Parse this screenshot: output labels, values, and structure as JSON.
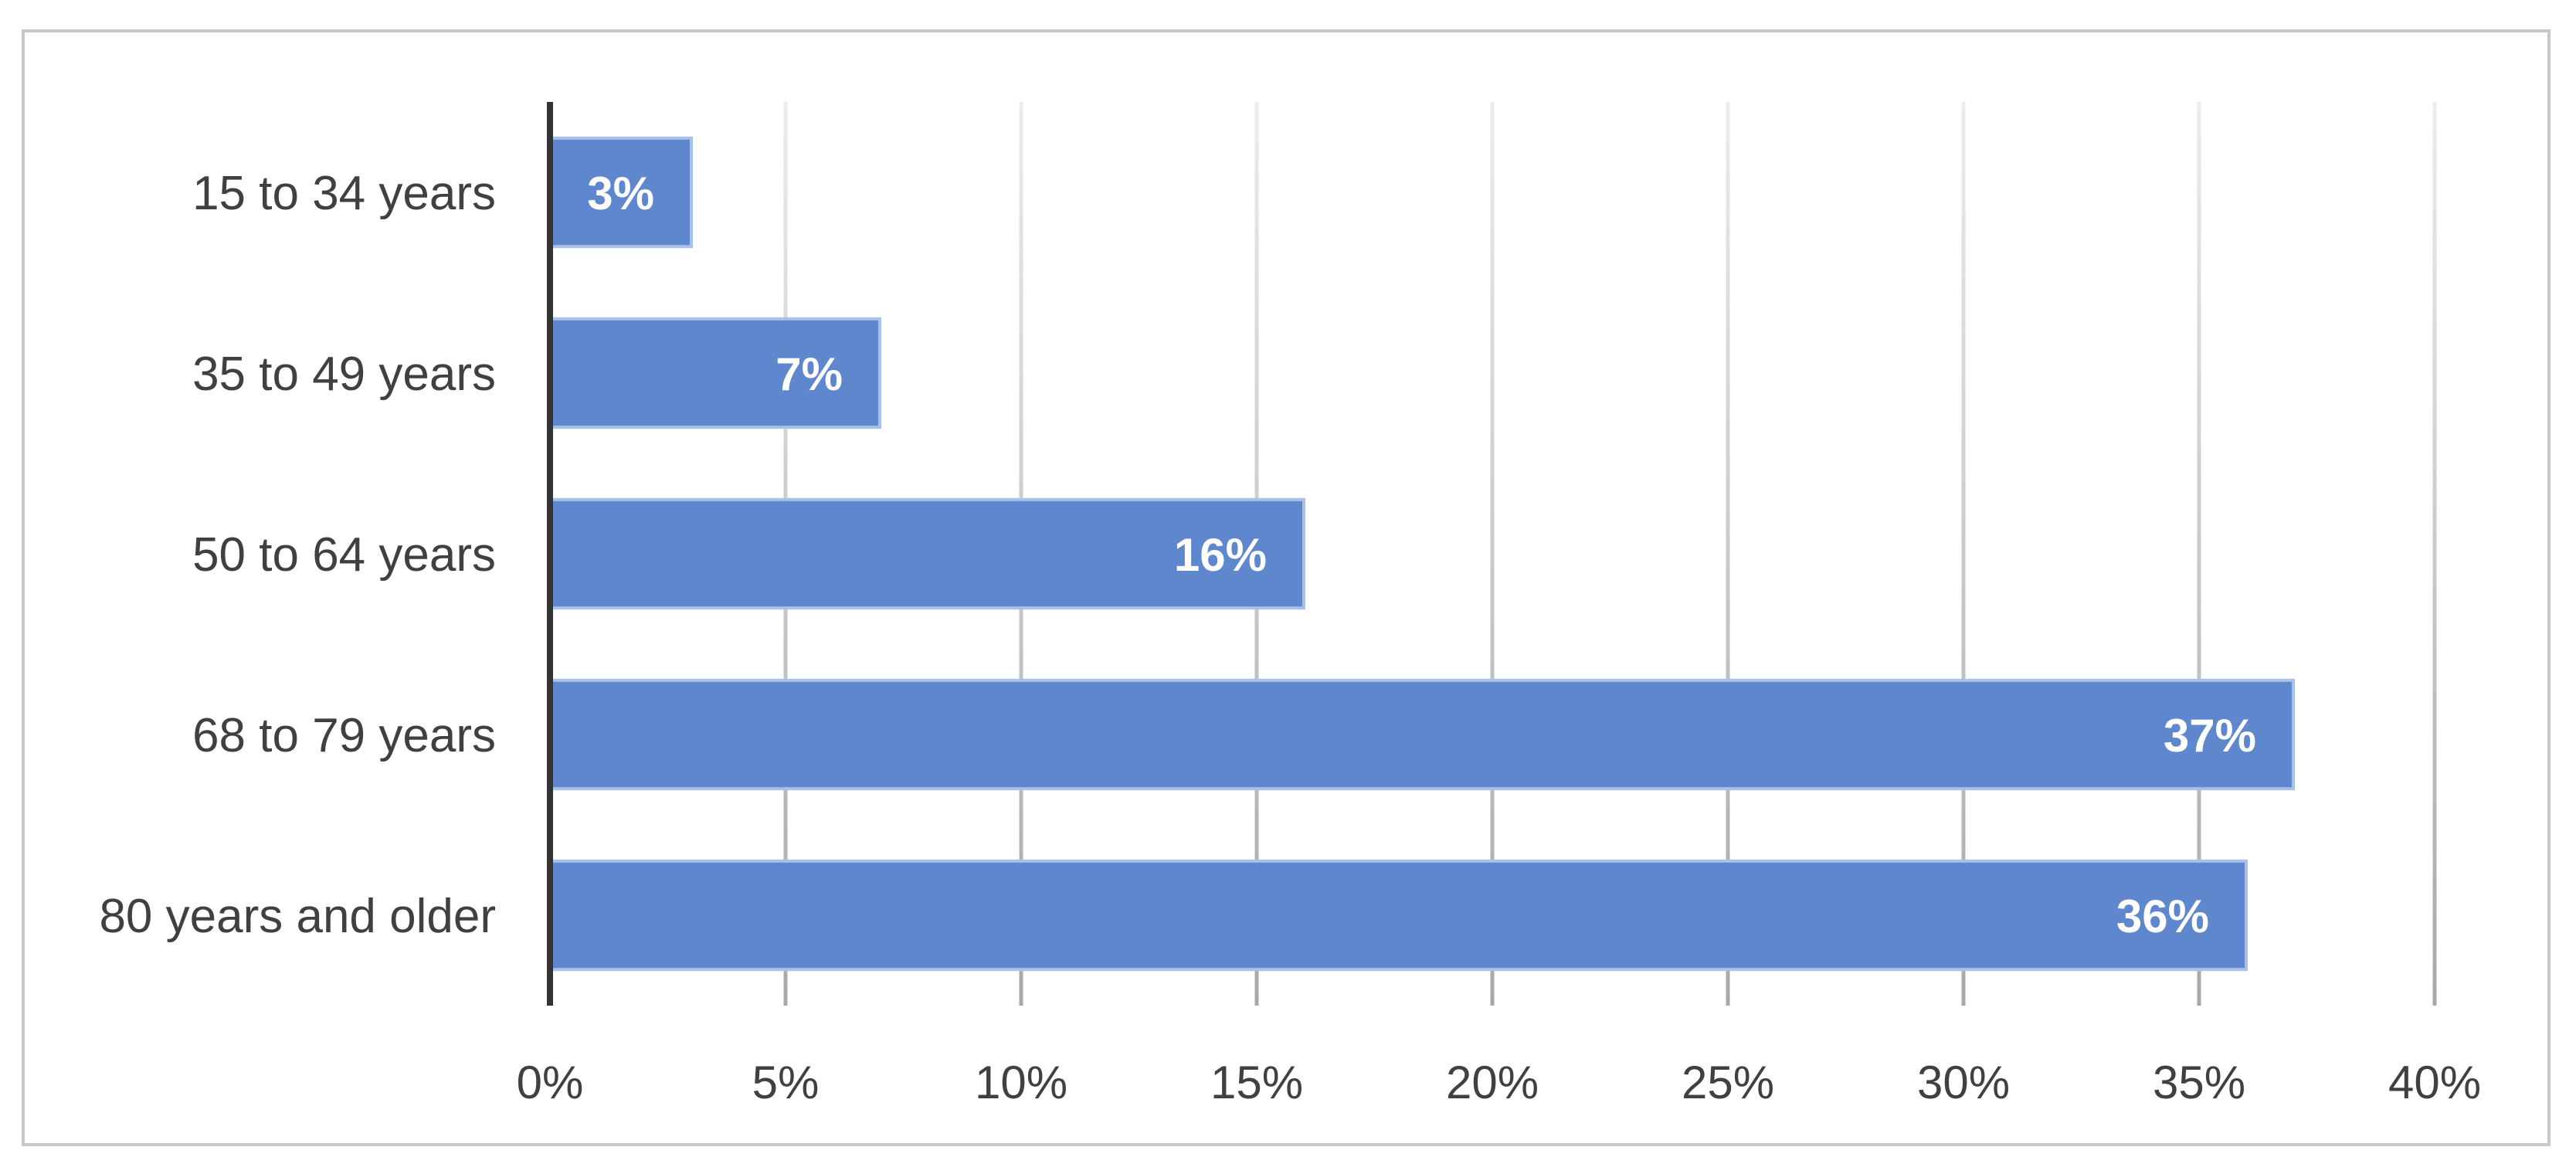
{
  "chart_data": {
    "type": "bar",
    "orientation": "horizontal",
    "categories": [
      "15 to 34 years",
      "35 to 49 years",
      "50 to 64 years",
      "68 to 79 years",
      "80 years and older"
    ],
    "values": [
      3,
      7,
      16,
      37,
      36
    ],
    "data_labels": [
      "3%",
      "7%",
      "16%",
      "37%",
      "36%"
    ],
    "xlim": [
      0,
      40
    ],
    "x_ticks": [
      0,
      5,
      10,
      15,
      20,
      25,
      30,
      35,
      40
    ],
    "x_tick_labels": [
      "0%",
      "5%",
      "10%",
      "15%",
      "20%",
      "25%",
      "30%",
      "35%",
      "40%"
    ],
    "title": "",
    "xlabel": "",
    "ylabel": "",
    "grid": "vertical",
    "legend": "none",
    "colors": {
      "bar_fill": "#5F87CE",
      "bar_stroke": "#A9C1EA",
      "grid": "#c4c4c4",
      "axis": "#333333",
      "text": "#404040",
      "label_text": "#ffffff"
    }
  }
}
